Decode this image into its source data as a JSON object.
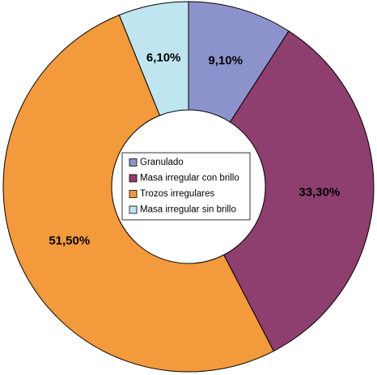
{
  "chart_data": {
    "type": "donut",
    "categories": [
      "Granulado",
      "Masa irregular con brillo",
      "Trozos irregulares",
      "Masa irregular sin brillo"
    ],
    "values": [
      9.1,
      33.3,
      51.5,
      6.1
    ],
    "value_labels": [
      "9,10%",
      "33,30%",
      "51,50%",
      "6,10%"
    ],
    "colors": [
      "#8c93cc",
      "#8e3f6f",
      "#f39a3d",
      "#bfe6f0"
    ]
  }
}
